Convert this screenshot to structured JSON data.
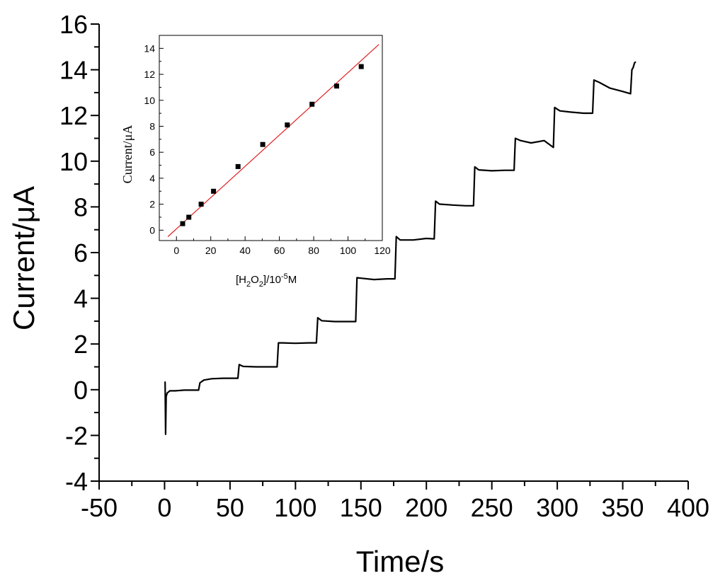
{
  "chart_data": [
    {
      "type": "line",
      "xlabel": "Time/s",
      "ylabel": "Current/μA",
      "xlim": [
        -50,
        400
      ],
      "ylim": [
        -4,
        16
      ],
      "xticks": [
        -50,
        0,
        50,
        100,
        150,
        200,
        250,
        300,
        350,
        400
      ],
      "yticks": [
        -4,
        -2,
        0,
        2,
        4,
        6,
        8,
        10,
        12,
        14,
        16
      ],
      "series": [
        {
          "color": "#000000",
          "x": [
            0,
            0.4,
            0.8,
            1.2,
            2,
            4,
            8,
            15,
            26,
            27,
            30,
            36,
            45,
            56,
            57,
            60,
            70,
            80,
            86,
            87,
            90,
            100,
            110,
            116,
            117,
            120,
            130,
            140,
            146,
            147,
            150,
            160,
            170,
            176,
            177,
            180,
            190,
            200,
            206,
            207,
            210,
            220,
            230,
            236,
            237,
            240,
            250,
            260,
            267,
            268,
            272,
            280,
            290,
            297,
            298,
            302,
            310,
            320,
            327,
            328,
            332,
            340,
            350,
            356,
            357,
            358,
            359,
            360
          ],
          "y": [
            0.35,
            0.33,
            -1.95,
            -0.3,
            -0.15,
            -0.05,
            -0.05,
            -0.02,
            -0.02,
            0.3,
            0.42,
            0.48,
            0.5,
            0.5,
            1.1,
            1.02,
            1.0,
            1.0,
            1.0,
            2.05,
            2.05,
            2.03,
            2.05,
            2.05,
            3.15,
            3.02,
            2.98,
            2.98,
            2.98,
            4.9,
            4.88,
            4.82,
            4.85,
            4.85,
            6.7,
            6.55,
            6.55,
            6.62,
            6.6,
            8.25,
            8.12,
            8.08,
            8.05,
            8.05,
            9.75,
            9.62,
            9.58,
            9.6,
            9.6,
            11.0,
            10.9,
            10.8,
            10.9,
            10.6,
            12.35,
            12.2,
            12.15,
            12.1,
            12.1,
            13.55,
            13.45,
            13.2,
            13.05,
            12.95,
            14.0,
            14.1,
            14.3,
            14.35
          ]
        }
      ]
    },
    {
      "type": "scatter",
      "xlabel": "[H2O2]/10-5M",
      "ylabel": "Current/μA",
      "xlim": [
        -10,
        120
      ],
      "ylim": [
        -0.8,
        15
      ],
      "xticks": [
        0,
        20,
        40,
        60,
        80,
        100,
        120
      ],
      "yticks": [
        0,
        2,
        4,
        6,
        8,
        10,
        12,
        14
      ],
      "points": {
        "x": [
          3.6,
          7.2,
          14.4,
          21.6,
          35.9,
          50.3,
          64.6,
          79.0,
          93.4,
          107.7
        ],
        "y": [
          0.5,
          1.0,
          2.0,
          3.0,
          4.9,
          6.6,
          8.1,
          9.7,
          11.1,
          12.6
        ]
      },
      "fit_line": {
        "color": "#e02020",
        "x": [
          -5,
          118
        ],
        "y": [
          -0.5,
          14.3
        ]
      },
      "marker_color": "#000000"
    }
  ],
  "inset": {
    "ylabel_text": "Current/μA",
    "xlabel_parts": {
      "a": "[H",
      "sub1": "2",
      "b": "O",
      "sub2": "2",
      "c": "]/10",
      "sup": "-5",
      "d": "M"
    }
  }
}
